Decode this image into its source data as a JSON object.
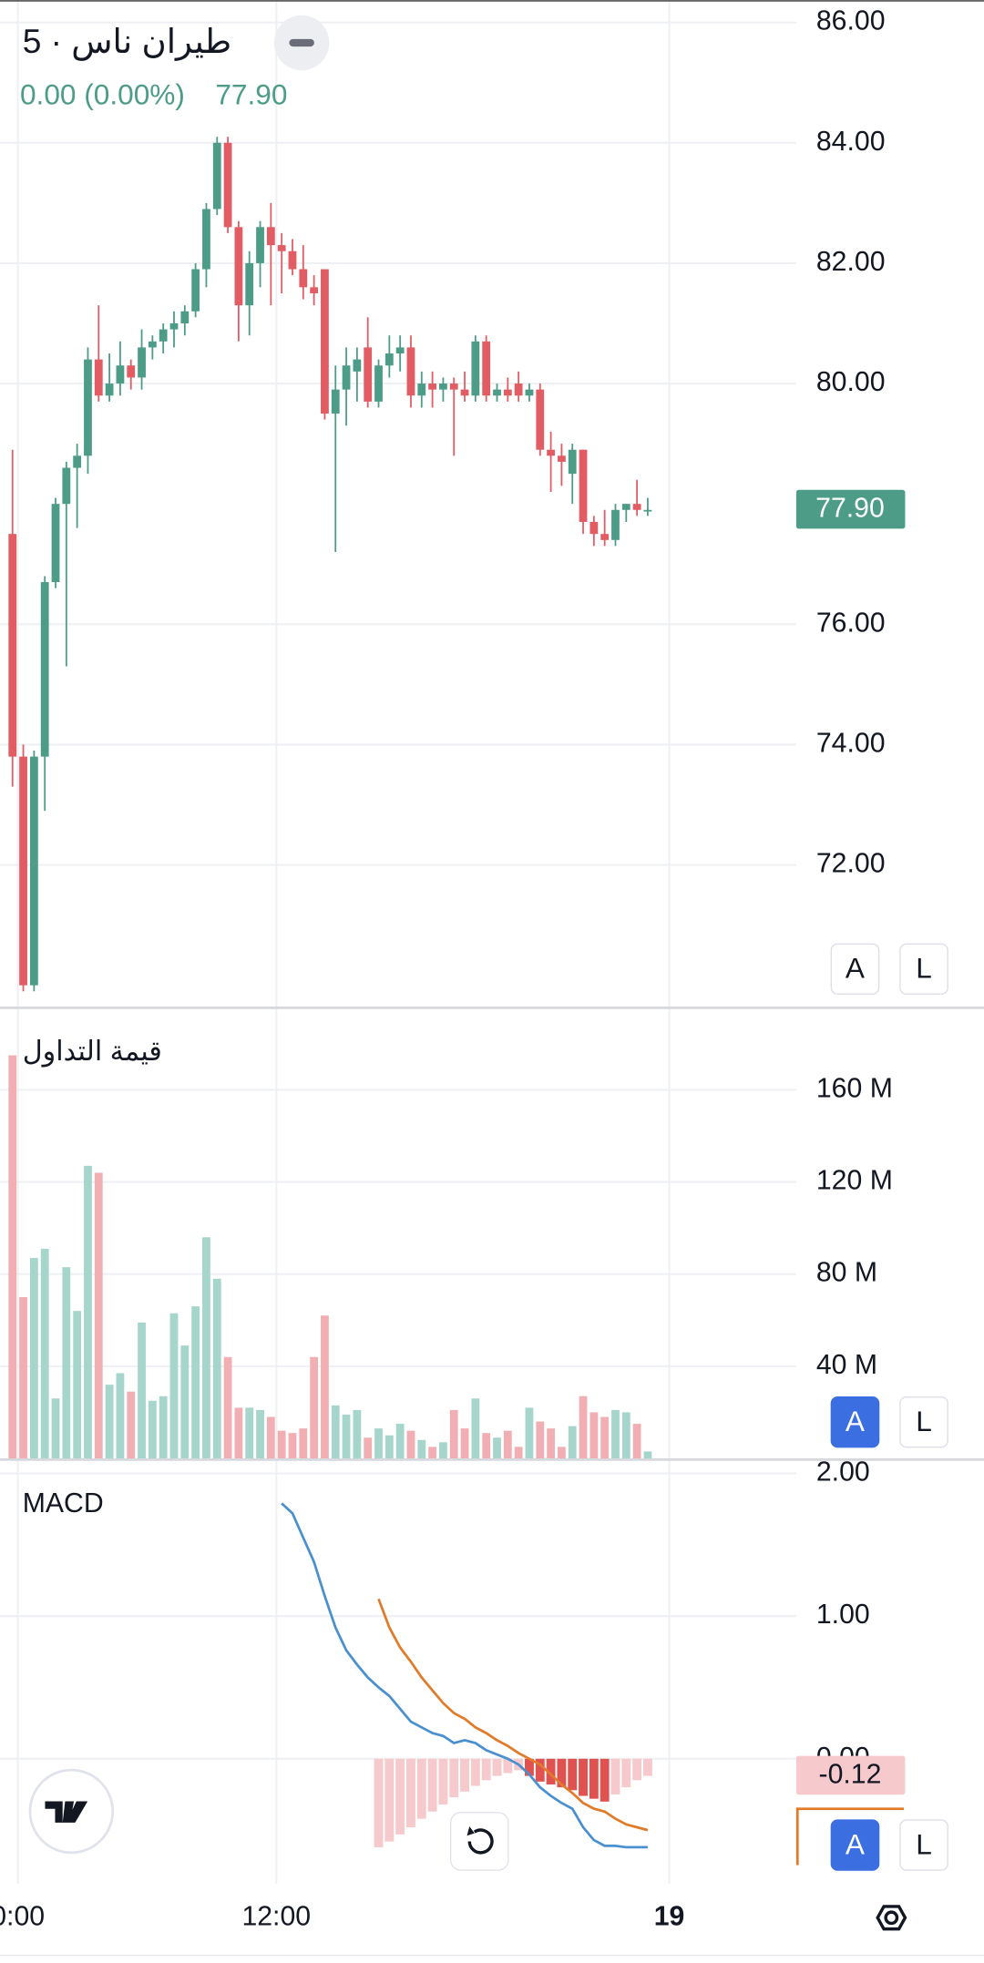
{
  "chart_data": [
    {
      "type": "candlestick",
      "title": "طيران ناس · 5",
      "change_label": "0.00 (0.00%)",
      "last_label": "77.90",
      "x": [
        0,
        1,
        2,
        3,
        4,
        5,
        6,
        7,
        8,
        9,
        10,
        11,
        12,
        13,
        14,
        15,
        16,
        17,
        18,
        19,
        20,
        21,
        22,
        23,
        24,
        25,
        26,
        27,
        28,
        29,
        30,
        31,
        32,
        33,
        34,
        35,
        36,
        37,
        38,
        39,
        40,
        41,
        42,
        43,
        44,
        45,
        46,
        47,
        48,
        49,
        50,
        51,
        52,
        53,
        54,
        55,
        56,
        57,
        58,
        59
      ],
      "xlim": [
        -1.163,
        72.79
      ],
      "xticks": [
        {
          "value": 0.5,
          "label": "0:00"
        },
        {
          "value": 24.5,
          "label": "12:00"
        },
        {
          "value": 61,
          "label": "19"
        }
      ],
      "open": [
        77.5,
        73.8,
        70.0,
        73.8,
        76.7,
        78.0,
        78.6,
        78.8,
        80.4,
        79.8,
        80.0,
        80.3,
        80.1,
        80.6,
        80.7,
        80.9,
        81.0,
        81.2,
        81.9,
        82.9,
        84.0,
        82.6,
        81.3,
        82.0,
        82.6,
        82.3,
        82.2,
        81.9,
        81.6,
        81.9,
        79.5,
        79.9,
        80.2,
        80.6,
        79.7,
        80.3,
        80.5,
        80.6,
        79.8,
        80.0,
        79.9,
        80.0,
        79.9,
        79.8,
        80.7,
        79.8,
        79.9,
        80.0,
        79.8,
        79.9,
        78.9,
        78.8,
        78.5,
        78.9,
        77.7,
        77.5,
        77.4,
        77.9,
        78.0,
        77.9
      ],
      "high": [
        78.9,
        74.0,
        73.9,
        76.8,
        78.1,
        78.7,
        79.0,
        80.6,
        81.3,
        80.5,
        80.7,
        80.4,
        80.9,
        80.8,
        81.0,
        81.2,
        81.3,
        82.0,
        83.0,
        84.1,
        84.1,
        82.7,
        82.2,
        82.7,
        83.0,
        82.5,
        82.4,
        82.3,
        81.8,
        81.9,
        80.3,
        80.6,
        80.6,
        81.1,
        80.4,
        80.8,
        80.8,
        80.8,
        80.2,
        80.2,
        80.1,
        80.1,
        80.2,
        80.8,
        80.8,
        80.0,
        80.1,
        80.2,
        80.0,
        80.0,
        79.2,
        79.0,
        79.0,
        78.9,
        77.8,
        77.9,
        78.0,
        78.0,
        78.4,
        78.1
      ],
      "low": [
        73.3,
        69.9,
        69.9,
        72.9,
        76.6,
        75.3,
        77.6,
        78.5,
        79.7,
        79.7,
        79.8,
        79.9,
        79.9,
        80.4,
        80.5,
        80.6,
        80.8,
        81.1,
        81.6,
        82.8,
        82.5,
        80.7,
        80.8,
        81.6,
        81.3,
        81.5,
        81.8,
        81.4,
        81.3,
        79.4,
        77.2,
        79.3,
        79.7,
        79.6,
        79.6,
        80.1,
        80.2,
        79.6,
        79.6,
        79.6,
        79.7,
        78.8,
        79.7,
        79.7,
        79.7,
        79.7,
        79.7,
        79.7,
        79.7,
        78.8,
        78.2,
        78.3,
        78.0,
        77.5,
        77.3,
        77.3,
        77.3,
        77.7,
        77.8,
        77.8
      ],
      "close": [
        73.8,
        70.0,
        73.8,
        76.7,
        78.0,
        78.6,
        78.8,
        80.4,
        79.8,
        80.0,
        80.3,
        80.1,
        80.6,
        80.7,
        80.9,
        81.0,
        81.2,
        81.9,
        82.9,
        84.0,
        82.6,
        81.3,
        82.0,
        82.6,
        82.3,
        82.2,
        81.9,
        81.6,
        81.5,
        79.5,
        79.9,
        80.3,
        80.4,
        79.7,
        80.3,
        80.5,
        80.6,
        79.8,
        80.0,
        79.9,
        80.0,
        79.9,
        79.8,
        80.7,
        79.8,
        79.9,
        79.8,
        79.8,
        79.9,
        78.9,
        78.8,
        78.7,
        78.9,
        77.7,
        77.5,
        77.4,
        77.9,
        78.0,
        77.9,
        77.9
      ],
      "ylim": [
        69.73,
        86.37
      ],
      "yticks": [
        {
          "value": 72,
          "label": "72.00"
        },
        {
          "value": 74,
          "label": "74.00"
        },
        {
          "value": 76,
          "label": "76.00"
        },
        {
          "value": 80,
          "label": "80.00"
        },
        {
          "value": 82,
          "label": "82.00"
        },
        {
          "value": 84,
          "label": "84.00"
        },
        {
          "value": 86,
          "label": "86.00"
        }
      ],
      "up_color": "#4c9c88",
      "down_color": "#e25c63",
      "grid": true
    },
    {
      "type": "bar",
      "title": "قيمة التداول",
      "values": [
        175,
        70,
        87,
        91,
        26,
        83,
        64,
        127,
        124,
        32,
        37,
        29,
        59,
        25,
        27,
        63,
        49,
        66,
        96,
        78,
        44,
        22,
        22,
        21,
        18,
        12,
        11,
        13,
        44,
        62,
        23,
        19,
        21,
        9,
        13,
        10,
        15,
        12,
        8,
        5,
        7,
        21,
        13,
        26,
        11,
        9,
        12,
        5,
        22,
        16,
        13,
        5,
        14,
        27,
        20,
        18,
        21,
        20,
        15,
        3
      ],
      "ylim": [
        0,
        194
      ],
      "yticks": [
        {
          "value": 40,
          "label": "40 M"
        },
        {
          "value": 80,
          "label": "80 M"
        },
        {
          "value": 120,
          "label": "120 M"
        },
        {
          "value": 160,
          "label": "160 M"
        }
      ],
      "up_color": "#a6d5cb",
      "down_color": "#f1afb4",
      "grid": true
    },
    {
      "type": "line",
      "title": "MACD",
      "last_label": "-0.12",
      "series": [
        {
          "color": "#4a90d0",
          "values": [
            null,
            null,
            null,
            null,
            null,
            null,
            null,
            null,
            null,
            null,
            null,
            null,
            null,
            null,
            null,
            null,
            null,
            null,
            null,
            null,
            null,
            null,
            null,
            null,
            null,
            1.79,
            1.72,
            1.55,
            1.38,
            1.14,
            0.92,
            0.76,
            0.66,
            0.57,
            0.5,
            0.44,
            0.35,
            0.26,
            0.22,
            0.18,
            0.16,
            0.11,
            0.13,
            0.11,
            0.06,
            0.03,
            0,
            -0.04,
            -0.11,
            -0.2,
            -0.26,
            -0.31,
            -0.35,
            -0.48,
            -0.57,
            -0.61,
            -0.61,
            -0.62,
            -0.62,
            -0.62
          ]
        },
        {
          "color": "#e07b2a",
          "values": [
            null,
            null,
            null,
            null,
            null,
            null,
            null,
            null,
            null,
            null,
            null,
            null,
            null,
            null,
            null,
            null,
            null,
            null,
            null,
            null,
            null,
            null,
            null,
            null,
            null,
            null,
            null,
            null,
            null,
            null,
            null,
            null,
            null,
            null,
            1.12,
            0.92,
            0.78,
            0.68,
            0.57,
            0.48,
            0.39,
            0.32,
            0.28,
            0.22,
            0.18,
            0.13,
            0.09,
            0.04,
            0,
            -0.04,
            -0.11,
            -0.18,
            -0.24,
            -0.31,
            -0.35,
            -0.37,
            -0.42,
            -0.46,
            -0.48,
            -0.5
          ]
        }
      ],
      "histogram": [
        null,
        null,
        null,
        null,
        null,
        null,
        null,
        null,
        null,
        null,
        null,
        null,
        null,
        null,
        null,
        null,
        null,
        null,
        null,
        null,
        null,
        null,
        null,
        null,
        null,
        null,
        null,
        null,
        null,
        null,
        null,
        null,
        null,
        null,
        -0.62,
        -0.58,
        -0.53,
        -0.48,
        -0.42,
        -0.37,
        -0.32,
        -0.27,
        -0.23,
        -0.19,
        -0.15,
        -0.12,
        -0.1,
        -0.08,
        -0.12,
        -0.16,
        -0.18,
        -0.2,
        -0.22,
        -0.26,
        -0.28,
        -0.3,
        -0.25,
        -0.2,
        -0.15,
        -0.12
      ],
      "histogram_colors": [
        "#f6c9cc",
        "#e0524f"
      ],
      "ylim": [
        -0.877,
        2.079
      ],
      "yticks": [
        {
          "value": 0,
          "label": "0.00"
        },
        {
          "value": 1,
          "label": "1.00"
        },
        {
          "value": 2,
          "label": "2.00"
        }
      ],
      "grid": true
    }
  ],
  "controls": {
    "auto": "A",
    "log": "L"
  }
}
